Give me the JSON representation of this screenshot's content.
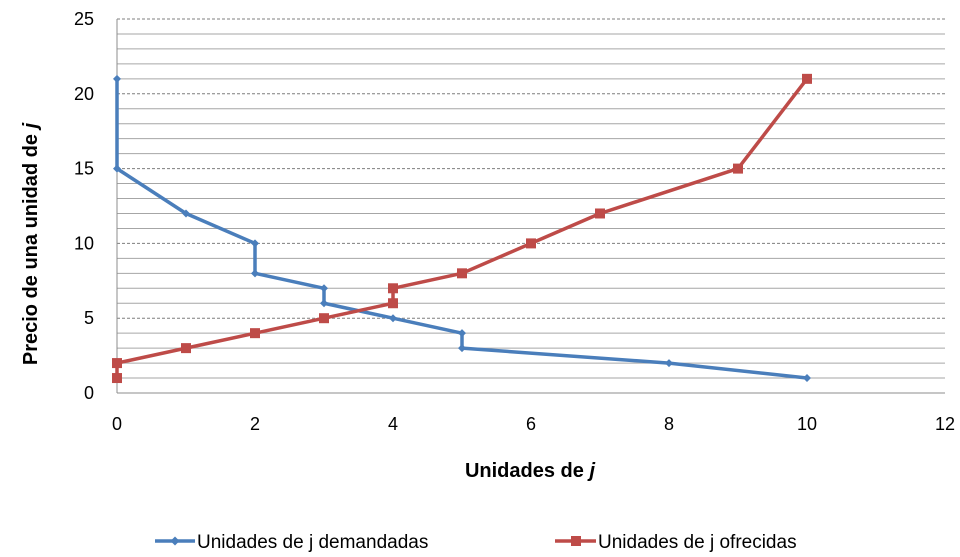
{
  "chart_data": {
    "type": "line",
    "title": "",
    "xlabel_prefix": "Unidades de ",
    "xlabel_var": "j",
    "ylabel_prefix": "Precio de una unidad de ",
    "ylabel_var": "j",
    "xlim": [
      0,
      12
    ],
    "ylim": [
      0,
      25
    ],
    "x_ticks": [
      "0",
      "2",
      "4",
      "6",
      "8",
      "10",
      "12"
    ],
    "y_ticks": [
      "0",
      "5",
      "10",
      "15",
      "20",
      "25"
    ],
    "x_tick_values": [
      0,
      2,
      4,
      6,
      8,
      10,
      12
    ],
    "y_tick_values": [
      0,
      5,
      10,
      15,
      20,
      25
    ],
    "gridlines": "horizontal, every 1 unit; dashed at multiples of 5",
    "legend_position": "bottom",
    "series": [
      {
        "name": "Unidades de j demandadas",
        "color": "#4a7ebb",
        "marker": "diamond",
        "points": [
          [
            0,
            21
          ],
          [
            0,
            15
          ],
          [
            1,
            12
          ],
          [
            2,
            10
          ],
          [
            2,
            8
          ],
          [
            3,
            7
          ],
          [
            3,
            6
          ],
          [
            4,
            5
          ],
          [
            5,
            4
          ],
          [
            5,
            3
          ],
          [
            8,
            2
          ],
          [
            10,
            1
          ]
        ]
      },
      {
        "name": "Unidades de j ofrecidas",
        "color": "#be4b48",
        "marker": "square",
        "points": [
          [
            0,
            1
          ],
          [
            0,
            2
          ],
          [
            1,
            3
          ],
          [
            2,
            4
          ],
          [
            3,
            5
          ],
          [
            4,
            6
          ],
          [
            4,
            7
          ],
          [
            5,
            8
          ],
          [
            6,
            10
          ],
          [
            7,
            12
          ],
          [
            9,
            15
          ],
          [
            10,
            21
          ]
        ]
      }
    ]
  }
}
